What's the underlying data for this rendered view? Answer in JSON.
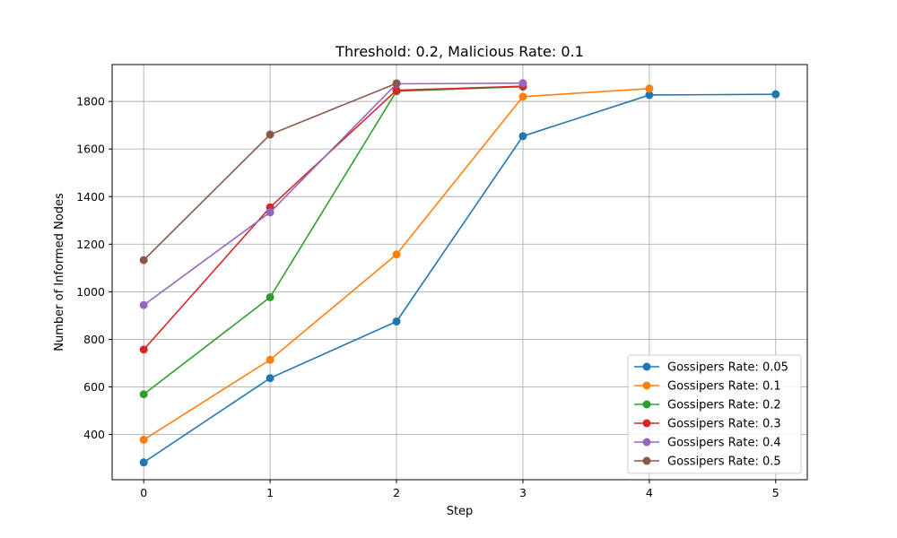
{
  "chart_data": {
    "type": "line",
    "title": "Threshold: 0.2, Malicious Rate: 0.1",
    "xlabel": "Step",
    "ylabel": "Number of Informed Nodes",
    "xlim": [
      -0.25,
      5.25
    ],
    "ylim": [
      210,
      1955
    ],
    "xticks": [
      0,
      1,
      2,
      3,
      4,
      5
    ],
    "yticks": [
      400,
      600,
      800,
      1000,
      1200,
      1400,
      1600,
      1800
    ],
    "grid": true,
    "legend_position": "lower-right",
    "series": [
      {
        "name": "Gossipers Rate: 0.05",
        "color": "#1f77b4",
        "x": [
          0,
          1,
          2,
          3,
          4,
          5
        ],
        "y": [
          283,
          637,
          875,
          1654,
          1827,
          1830
        ]
      },
      {
        "name": "Gossipers Rate: 0.1",
        "color": "#ff7f0e",
        "x": [
          0,
          1,
          2,
          3,
          4
        ],
        "y": [
          378,
          714,
          1157,
          1820,
          1854
        ]
      },
      {
        "name": "Gossipers Rate: 0.2",
        "color": "#2ca02c",
        "x": [
          0,
          1,
          2,
          3
        ],
        "y": [
          569,
          977,
          1843,
          1862
        ]
      },
      {
        "name": "Gossipers Rate: 0.3",
        "color": "#d62728",
        "x": [
          0,
          1,
          2,
          3
        ],
        "y": [
          757,
          1355,
          1847,
          1864
        ]
      },
      {
        "name": "Gossipers Rate: 0.4",
        "color": "#9467bd",
        "x": [
          0,
          1,
          2,
          3
        ],
        "y": [
          944,
          1334,
          1874,
          1877
        ]
      },
      {
        "name": "Gossipers Rate: 0.5",
        "color": "#8c564b",
        "x": [
          0,
          1,
          2
        ],
        "y": [
          1133,
          1661,
          1876
        ]
      }
    ]
  }
}
